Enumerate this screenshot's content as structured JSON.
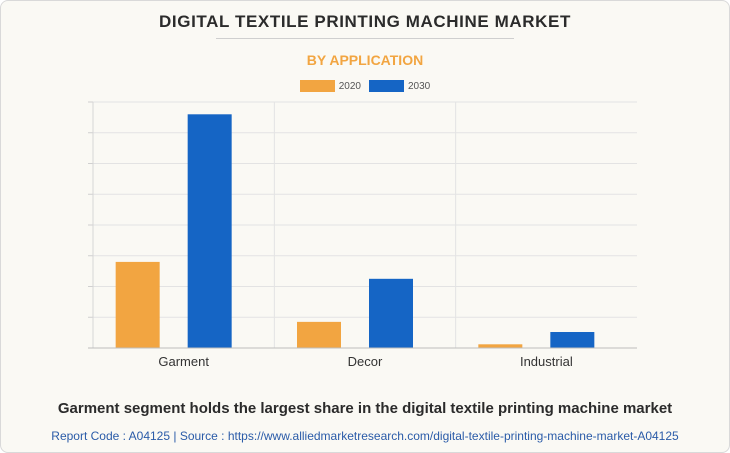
{
  "header": {
    "title": "DIGITAL TEXTILE PRINTING MACHINE MARKET",
    "subtitle": "BY APPLICATION"
  },
  "colors": {
    "series_2020": "#f2a541",
    "series_2030": "#1565c5",
    "subtitle": "#f2a541",
    "background": "#faf9f4"
  },
  "chart_data": {
    "type": "bar",
    "title": "DIGITAL TEXTILE PRINTING MACHINE MARKET",
    "subtitle": "BY APPLICATION",
    "categories": [
      "Garment",
      "Decor",
      "Industrial"
    ],
    "series": [
      {
        "name": "2020",
        "values": [
          2.8,
          0.85,
          0.12
        ]
      },
      {
        "name": "2030",
        "values": [
          7.6,
          2.25,
          0.52
        ]
      }
    ],
    "ylim": [
      0,
      8
    ],
    "y_ticks_visible": false,
    "grid": true,
    "legend_position": "top-center"
  },
  "footer": {
    "caption": "Garment segment holds the largest share in the digital textile printing machine market",
    "source": "Report Code : A04125  |  Source : https://www.alliedmarketresearch.com/digital-textile-printing-machine-market-A04125"
  }
}
